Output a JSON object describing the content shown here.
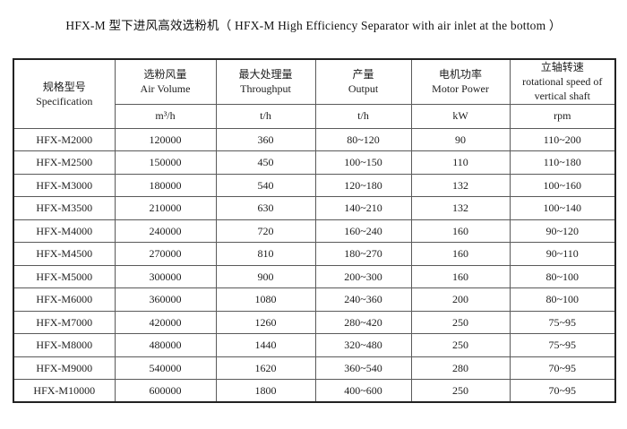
{
  "title": "HFX-M 型下进风高效选粉机（ HFX-M High Efficiency Separator with air inlet at the bottom ）",
  "table": {
    "columns": [
      {
        "zh": "规格型号",
        "en": "Specification",
        "unit": ""
      },
      {
        "zh": "选粉风量",
        "en": "Air Volume",
        "unit": "m³/h"
      },
      {
        "zh": "最大处理量",
        "en": "Throughput",
        "unit": "t/h"
      },
      {
        "zh": "产量",
        "en": "Output",
        "unit": "t/h"
      },
      {
        "zh": "电机功率",
        "en": "Motor Power",
        "unit": "kW"
      },
      {
        "zh": "立轴转速",
        "en": "rotational speed of vertical shaft",
        "unit": "rpm"
      }
    ],
    "rows": [
      [
        "HFX-M2000",
        "120000",
        "360",
        "80~120",
        "90",
        "110~200"
      ],
      [
        "HFX-M2500",
        "150000",
        "450",
        "100~150",
        "110",
        "110~180"
      ],
      [
        "HFX-M3000",
        "180000",
        "540",
        "120~180",
        "132",
        "100~160"
      ],
      [
        "HFX-M3500",
        "210000",
        "630",
        "140~210",
        "132",
        "100~140"
      ],
      [
        "HFX-M4000",
        "240000",
        "720",
        "160~240",
        "160",
        "90~120"
      ],
      [
        "HFX-M4500",
        "270000",
        "810",
        "180~270",
        "160",
        "90~110"
      ],
      [
        "HFX-M5000",
        "300000",
        "900",
        "200~300",
        "160",
        "80~100"
      ],
      [
        "HFX-M6000",
        "360000",
        "1080",
        "240~360",
        "200",
        "80~100"
      ],
      [
        "HFX-M7000",
        "420000",
        "1260",
        "280~420",
        "250",
        "75~95"
      ],
      [
        "HFX-M8000",
        "480000",
        "1440",
        "320~480",
        "250",
        "75~95"
      ],
      [
        "HFX-M9000",
        "540000",
        "1620",
        "360~540",
        "280",
        "70~95"
      ],
      [
        "HFX-M10000",
        "600000",
        "1800",
        "400~600",
        "250",
        "70~95"
      ]
    ],
    "colors": {
      "outer_border": "#222222",
      "inner_border": "#5a5a5a",
      "text": "#1c1c1c",
      "background": "#ffffff"
    }
  }
}
